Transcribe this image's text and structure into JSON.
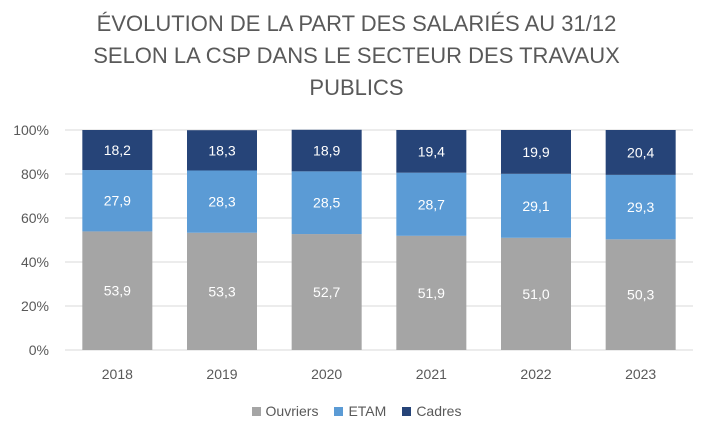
{
  "chart_data": {
    "type": "bar",
    "stacked": true,
    "title_lines": [
      "ÉVOLUTION DE LA PART DES SALARIÉS AU 31/12",
      "SELON LA CSP DANS LE SECTEUR DES TRAVAUX",
      "PUBLICS"
    ],
    "categories": [
      "2018",
      "2019",
      "2020",
      "2021",
      "2022",
      "2023"
    ],
    "series": [
      {
        "name": "Ouvriers",
        "color": "#a5a5a5",
        "values": [
          53.9,
          53.3,
          52.7,
          51.9,
          51.0,
          50.3
        ],
        "labels": [
          "53,9",
          "53,3",
          "52,7",
          "51,9",
          "51,0",
          "50,3"
        ]
      },
      {
        "name": "ETAM",
        "color": "#5b9bd5",
        "values": [
          27.9,
          28.3,
          28.5,
          28.7,
          29.1,
          29.3
        ],
        "labels": [
          "27,9",
          "28,3",
          "28,5",
          "28,7",
          "29,1",
          "29,3"
        ]
      },
      {
        "name": "Cadres",
        "color": "#264478",
        "values": [
          18.2,
          18.3,
          18.9,
          19.4,
          19.9,
          20.4
        ],
        "labels": [
          "18,2",
          "18,3",
          "18,9",
          "19,4",
          "19,9",
          "20,4"
        ]
      }
    ],
    "y_ticks": [
      0,
      20,
      40,
      60,
      80,
      100
    ],
    "y_tick_labels": [
      "0%",
      "20%",
      "40%",
      "60%",
      "80%",
      "100%"
    ],
    "ylim": [
      0,
      100
    ],
    "grid": true,
    "legend_position": "bottom"
  }
}
